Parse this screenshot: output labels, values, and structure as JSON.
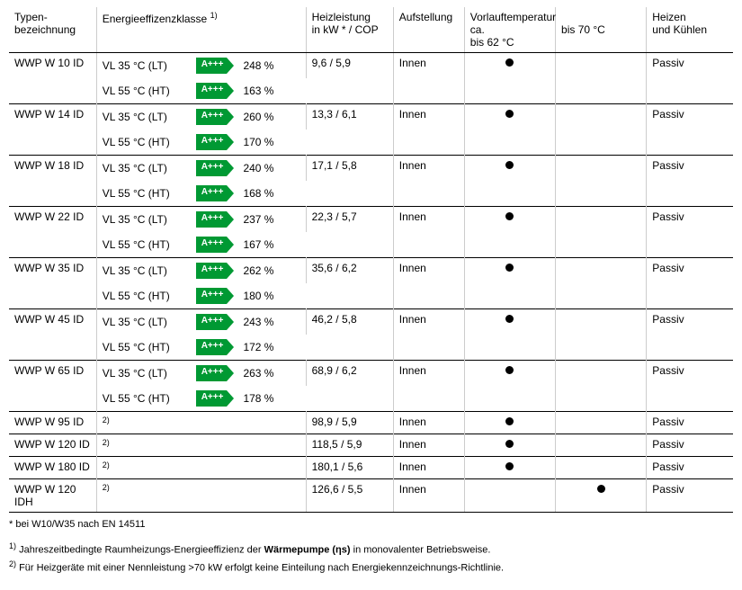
{
  "columns": {
    "type": "Typen-\nbezeichnung",
    "eff": "Energieeffizenzklasse ",
    "eff_sup": "1)",
    "heiz": "Heizleistung\nin kW * / COP",
    "auf": "Aufstellung",
    "vl": "Vorlauftemperatur ca.",
    "vl62": "bis 62 °C",
    "vl70": "bis 70 °C",
    "heat": "Heizen\nund Kühlen"
  },
  "badge_label": "A+++",
  "rows": [
    {
      "type": "WWP W 10 ID",
      "eff": [
        {
          "vl": "VL 35 °C (LT)",
          "pct": "248 %"
        },
        {
          "vl": "VL 55 °C (HT)",
          "pct": "163 %"
        }
      ],
      "heiz": "9,6 / 5,9",
      "auf": "Innen",
      "dot62": true,
      "dot70": false,
      "heat": "Passiv"
    },
    {
      "type": "WWP W 14 ID",
      "eff": [
        {
          "vl": "VL 35 °C (LT)",
          "pct": "260 %"
        },
        {
          "vl": "VL 55 °C (HT)",
          "pct": "170 %"
        }
      ],
      "heiz": "13,3 / 6,1",
      "auf": "Innen",
      "dot62": true,
      "dot70": false,
      "heat": "Passiv"
    },
    {
      "type": "WWP W 18 ID",
      "eff": [
        {
          "vl": "VL 35 °C (LT)",
          "pct": "240 %"
        },
        {
          "vl": "VL 55 °C (HT)",
          "pct": "168 %"
        }
      ],
      "heiz": "17,1 / 5,8",
      "auf": "Innen",
      "dot62": true,
      "dot70": false,
      "heat": "Passiv"
    },
    {
      "type": "WWP W 22 ID",
      "eff": [
        {
          "vl": "VL 35 °C (LT)",
          "pct": "237 %"
        },
        {
          "vl": "VL 55 °C (HT)",
          "pct": "167 %"
        }
      ],
      "heiz": "22,3 / 5,7",
      "auf": "Innen",
      "dot62": true,
      "dot70": false,
      "heat": "Passiv"
    },
    {
      "type": "WWP W 35 ID",
      "eff": [
        {
          "vl": "VL 35 °C (LT)",
          "pct": "262 %"
        },
        {
          "vl": "VL 55 °C (HT)",
          "pct": "180 %"
        }
      ],
      "heiz": "35,6 / 6,2",
      "auf": "Innen",
      "dot62": true,
      "dot70": false,
      "heat": "Passiv"
    },
    {
      "type": "WWP W 45 ID",
      "eff": [
        {
          "vl": "VL 35 °C (LT)",
          "pct": "243 %"
        },
        {
          "vl": "VL 55 °C (HT)",
          "pct": "172 %"
        }
      ],
      "heiz": "46,2 / 5,8",
      "auf": "Innen",
      "dot62": true,
      "dot70": false,
      "heat": "Passiv"
    },
    {
      "type": "WWP W 65 ID",
      "eff": [
        {
          "vl": "VL 35 °C (LT)",
          "pct": "263 %"
        },
        {
          "vl": "VL 55 °C (HT)",
          "pct": "178 %"
        }
      ],
      "heiz": "68,9 / 6,2",
      "auf": "Innen",
      "dot62": true,
      "dot70": false,
      "heat": "Passiv"
    },
    {
      "type": "WWP W 95 ID",
      "eff_note": "2)",
      "heiz": "98,9 / 5,9",
      "auf": "Innen",
      "dot62": true,
      "dot70": false,
      "heat": "Passiv"
    },
    {
      "type": "WWP W 120 ID",
      "eff_note": "2)",
      "heiz": "118,5 / 5,9",
      "auf": "Innen",
      "dot62": true,
      "dot70": false,
      "heat": "Passiv"
    },
    {
      "type": "WWP W 180 ID",
      "eff_note": "2)",
      "heiz": "180,1 / 5,6",
      "auf": "Innen",
      "dot62": true,
      "dot70": false,
      "heat": "Passiv"
    },
    {
      "type": "WWP W 120 IDH",
      "eff_note": "2)",
      "heiz": "126,6 / 5,5",
      "auf": "Innen",
      "dot62": false,
      "dot70": true,
      "heat": "Passiv"
    }
  ],
  "footnotes": {
    "star": "* bei W10/W35 nach EN 14511",
    "fn1_sup": "1)",
    "fn1_a": "Jahreszeitbedingte Raumheizungs-Energieeffizienz der ",
    "fn1_bold": "Wärmepumpe (ηs)",
    "fn1_b": " in monovalenter Betriebsweise.",
    "fn2_sup": "2)",
    "fn2": "Für Heizgeräte mit einer Nennleistung >70 kW erfolgt keine Einteilung nach Energiekennzeichnungs-Richtlinie."
  }
}
